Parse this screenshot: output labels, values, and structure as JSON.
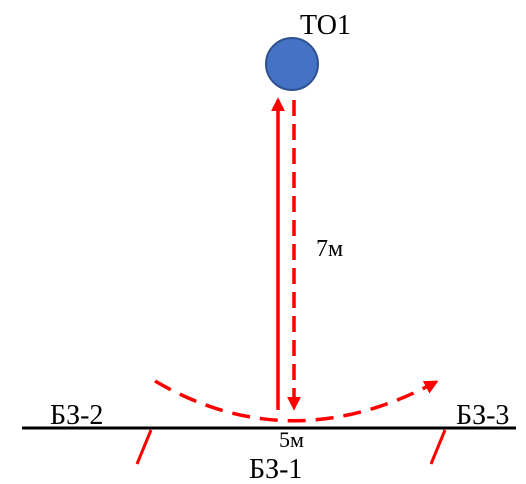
{
  "labels": {
    "target": "ТО1",
    "distance_vertical": "7м",
    "distance_horizontal": "5м",
    "zone_left": "БЗ-2",
    "zone_center": "БЗ-1",
    "zone_right": "БЗ-3"
  },
  "colors": {
    "target_fill": "#4472c4",
    "target_stroke": "#2f528f",
    "arrow": "#ff0000",
    "ground": "#000000",
    "post": "#ff0000"
  }
}
